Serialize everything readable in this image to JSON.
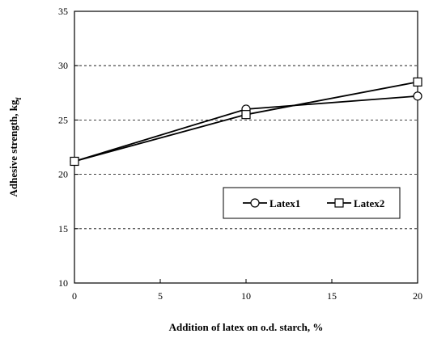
{
  "chart_data": {
    "type": "line",
    "xlabel": "Addition of latex on o.d. starch, %",
    "ylabel_main": "Adhesive strength, kg",
    "ylabel_sub": "f",
    "xlim": [
      0,
      20
    ],
    "ylim": [
      10,
      35
    ],
    "xticks": [
      0,
      5,
      10,
      15,
      20
    ],
    "yticks": [
      10,
      15,
      20,
      25,
      30,
      35
    ],
    "grid": {
      "y": true,
      "x": false,
      "style": "dashed"
    },
    "legend_position": "center-right",
    "series": [
      {
        "name": "Latex1",
        "marker": "circle",
        "x": [
          0,
          10,
          20
        ],
        "y": [
          21.2,
          26.0,
          27.2
        ]
      },
      {
        "name": "Latex2",
        "marker": "square",
        "x": [
          0,
          10,
          20
        ],
        "y": [
          21.2,
          25.5,
          28.5
        ]
      }
    ]
  }
}
